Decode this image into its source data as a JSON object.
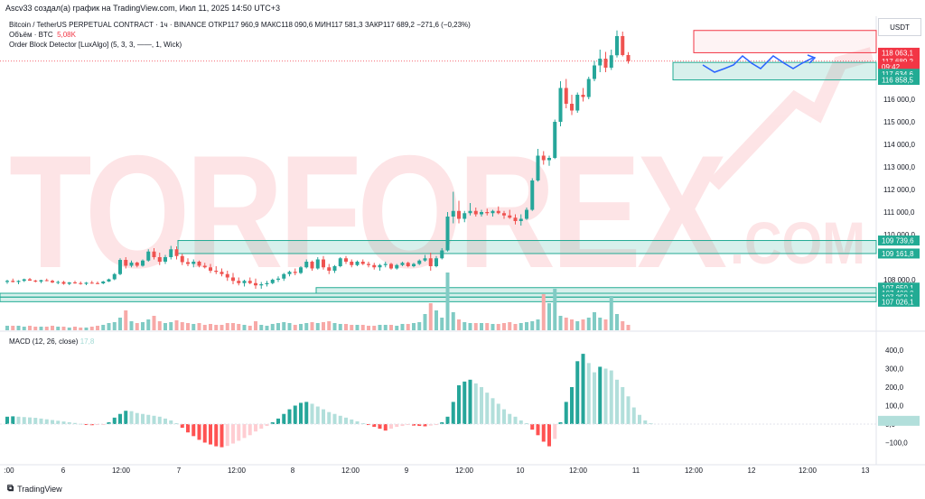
{
  "header": {
    "text": "Ascv33 создал(а) график на TradingView.com, Июл 11, 2025 14:50 UTC+3"
  },
  "legend": {
    "symbol_line": "Bitcoin / TetherUS PERPETUAL CONTRACT · 1ч · BINANCE  ОТКР117 960,9  МАКС118 090,6  МИН117 581,3  ЗАКР117 689,2  −271,6 (−0,23%)",
    "volume_label": "Объём · BTC",
    "volume_value": "5,08K",
    "indicator": "Order Block Detector [LuxAlgo] (5, 3, 3, ——, 1, Wick)"
  },
  "currency": "USDT",
  "macd_legend": {
    "label": "MACD (12, 26, close)",
    "value": "17,8"
  },
  "footer": {
    "brand": "TradingView"
  },
  "watermark": {
    "main": "TORFOREX",
    "sub": ".COM"
  },
  "price_axis": {
    "ticks": [
      "116 000,0",
      "115 000,0",
      "114 000,0",
      "113 000,0",
      "112 000,0",
      "111 000,0",
      "110 000,0",
      "108 000,0"
    ],
    "labels": [
      {
        "text": "118 063,1",
        "color": "#f23645",
        "price": 118063
      },
      {
        "text": "117 689,2",
        "color": "#f23645",
        "price": 117689
      },
      {
        "text": "09:42",
        "color": "#f23645",
        "price": 117450
      },
      {
        "text": "117 634,6",
        "color": "#22ab94",
        "price": 117130
      },
      {
        "text": "116 858,5",
        "color": "#22ab94",
        "price": 116858
      },
      {
        "text": "109 739,6",
        "color": "#22ab94",
        "price": 109739
      },
      {
        "text": "109 161,8",
        "color": "#22ab94",
        "price": 109161
      },
      {
        "text": "107 650,1",
        "color": "#22ab94",
        "price": 107650
      },
      {
        "text": "107 400,0",
        "color": "#22ab94",
        "price": 107400
      },
      {
        "text": "107 358,1",
        "color": "#22ab94",
        "price": 107230
      },
      {
        "text": "107 026,1",
        "color": "#22ab94",
        "price": 107026
      }
    ]
  },
  "macd_axis": {
    "ticks": [
      "400,0",
      "300,0",
      "200,0",
      "100,0",
      "0,0",
      "−100,0"
    ]
  },
  "time_axis": {
    "ticks": [
      ":00",
      "6",
      "12:00",
      "7",
      "12:00",
      "8",
      "12:00",
      "9",
      "12:00",
      "10",
      "12:00",
      "11",
      "12:00",
      "12",
      "12:00",
      "13"
    ]
  },
  "colors": {
    "up": "#26a69a",
    "down": "#ef5350",
    "zone": "#22ab94",
    "bear_zone": "#f23645",
    "projection": "#2962ff"
  }
}
